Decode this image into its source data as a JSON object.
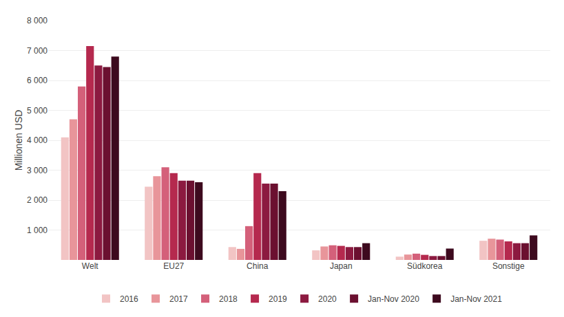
{
  "chart_data": {
    "type": "bar",
    "ylabel": "Millionen USD",
    "categories": [
      "Welt",
      "EU27",
      "China",
      "Japan",
      "Südkorea",
      "Sonstige"
    ],
    "series": [
      {
        "name": "2016",
        "color": "#f2c4c4",
        "values": [
          4100,
          2450,
          430,
          320,
          110,
          640
        ]
      },
      {
        "name": "2017",
        "color": "#e8959a",
        "values": [
          4700,
          2800,
          370,
          450,
          180,
          710
        ]
      },
      {
        "name": "2018",
        "color": "#d4607a",
        "values": [
          5800,
          3100,
          1130,
          490,
          210,
          680
        ]
      },
      {
        "name": "2019",
        "color": "#b5294e",
        "values": [
          7150,
          2900,
          2900,
          470,
          170,
          620
        ]
      },
      {
        "name": "2020",
        "color": "#8c1a40",
        "values": [
          6500,
          2650,
          2550,
          430,
          130,
          560
        ]
      },
      {
        "name": "Jan-Nov 2020",
        "color": "#6b1030",
        "values": [
          6450,
          2650,
          2550,
          430,
          130,
          560
        ]
      },
      {
        "name": "Jan-Nov 2021",
        "color": "#3d0a1e",
        "values": [
          6800,
          2600,
          2300,
          560,
          380,
          820
        ]
      }
    ],
    "ylim": [
      0,
      8000
    ],
    "yticks": [
      {
        "value": 0,
        "label": ""
      },
      {
        "value": 1000,
        "label": "1 000"
      },
      {
        "value": 2000,
        "label": "2 000"
      },
      {
        "value": 3000,
        "label": "3 000"
      },
      {
        "value": 4000,
        "label": "4 000"
      },
      {
        "value": 5000,
        "label": "5 000"
      },
      {
        "value": 6000,
        "label": "6 000"
      },
      {
        "value": 7000,
        "label": "7 000"
      },
      {
        "value": 8000,
        "label": "8 000"
      }
    ],
    "grid": true,
    "legend": "bottom"
  }
}
